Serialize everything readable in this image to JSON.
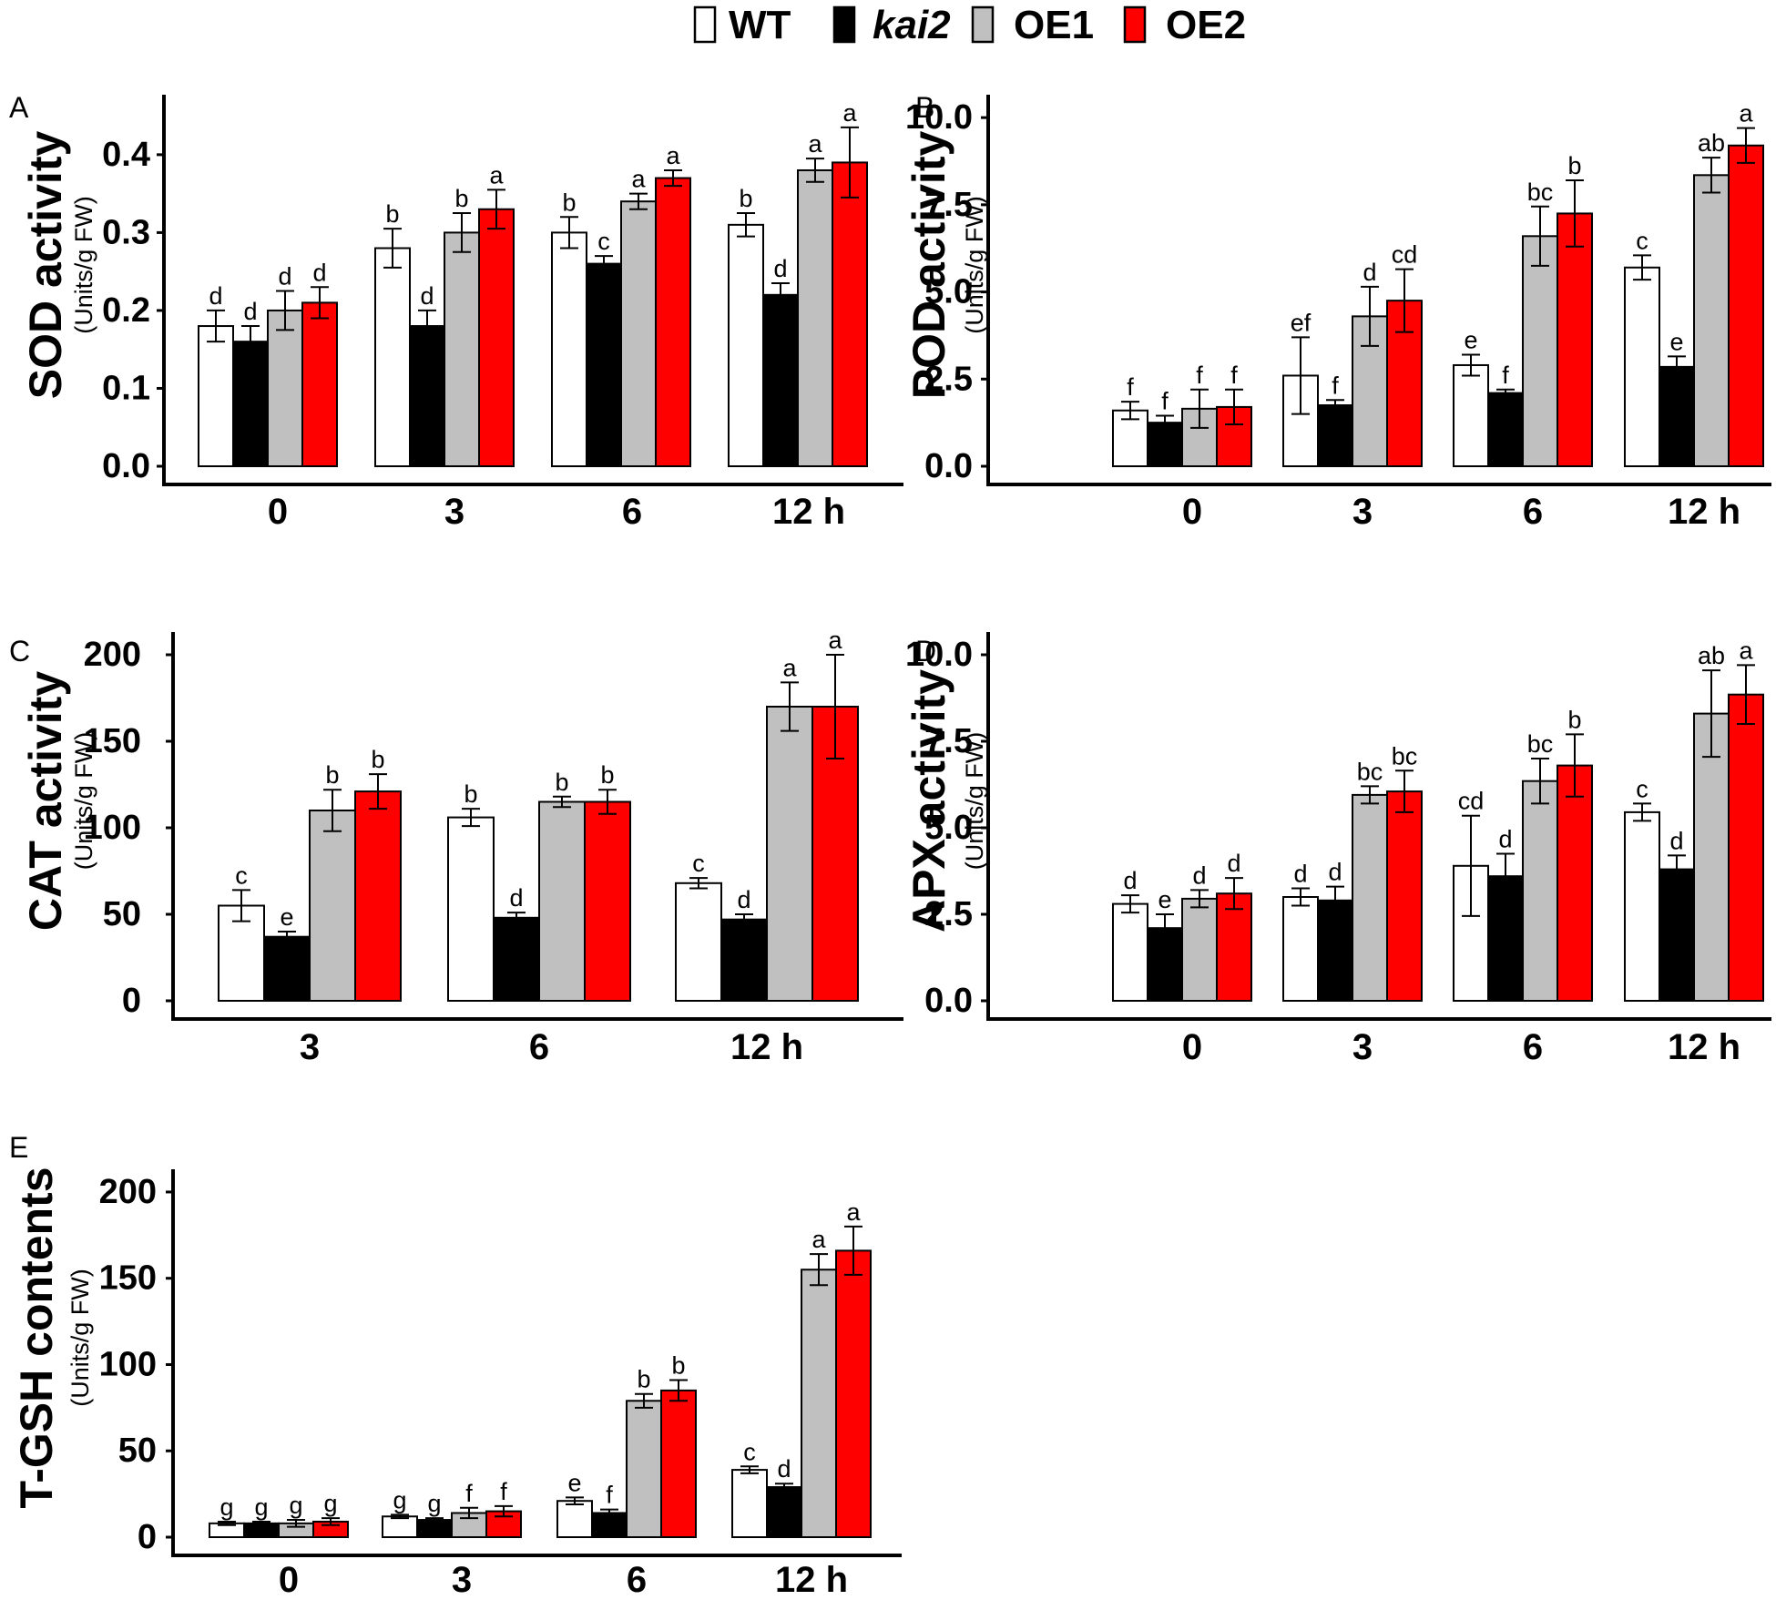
{
  "legend": {
    "entries": [
      {
        "name": "WT",
        "italic": false
      },
      {
        "name": "kai2",
        "italic": true
      },
      {
        "name": "OE1",
        "italic": false
      },
      {
        "name": "OE2",
        "italic": false
      }
    ]
  },
  "colors": {
    "WT": "#ffffff",
    "kai2": "#000000",
    "OE1": "#c0c0c0",
    "OE2": "#ff0000",
    "axis": "#000000"
  },
  "chart_data": [
    {
      "panel": "A",
      "type": "bar",
      "title": "",
      "ylabel": "SOD activity",
      "yunit": "(Units/g FW)",
      "categories": [
        "0",
        "3",
        "6",
        "12 h"
      ],
      "ylim": [
        0,
        0.47
      ],
      "yticks": [
        0.0,
        0.1,
        0.2,
        0.3,
        0.4
      ],
      "ytick_labels": [
        "0.0",
        "0.1",
        "0.2",
        "0.3",
        "0.4"
      ],
      "series": [
        {
          "name": "WT",
          "values": [
            0.18,
            0.28,
            0.3,
            0.31
          ],
          "errors": [
            0.02,
            0.025,
            0.02,
            0.015
          ],
          "letters": [
            "d",
            "b",
            "b",
            "b"
          ]
        },
        {
          "name": "kai2",
          "values": [
            0.16,
            0.18,
            0.26,
            0.22
          ],
          "errors": [
            0.02,
            0.02,
            0.01,
            0.015
          ],
          "letters": [
            "d",
            "d",
            "c",
            "d"
          ]
        },
        {
          "name": "OE1",
          "values": [
            0.2,
            0.3,
            0.34,
            0.38
          ],
          "errors": [
            0.025,
            0.025,
            0.01,
            0.015
          ],
          "letters": [
            "d",
            "b",
            "a",
            "a"
          ]
        },
        {
          "name": "OE2",
          "values": [
            0.21,
            0.33,
            0.37,
            0.39
          ],
          "errors": [
            0.02,
            0.025,
            0.01,
            0.045
          ],
          "letters": [
            "d",
            "a",
            "a",
            "a"
          ]
        }
      ]
    },
    {
      "panel": "B",
      "type": "bar",
      "title": "",
      "ylabel": "POD activity",
      "yunit": "(Units/g FW)",
      "categories": [
        "0",
        "3",
        "6",
        "12 h"
      ],
      "ylim": [
        0,
        10.5
      ],
      "yticks": [
        0.0,
        2.5,
        5.0,
        7.5,
        10.0
      ],
      "ytick_labels": [
        "0.0",
        "2.5",
        "5.0",
        "7.5",
        "10.0"
      ],
      "series": [
        {
          "name": "WT",
          "values": [
            1.6,
            2.6,
            2.9,
            5.7
          ],
          "errors": [
            0.25,
            1.1,
            0.3,
            0.35
          ],
          "letters": [
            "f",
            "ef",
            "e",
            "c"
          ]
        },
        {
          "name": "kai2",
          "values": [
            1.25,
            1.75,
            2.1,
            2.85
          ],
          "errors": [
            0.2,
            0.15,
            0.1,
            0.3
          ],
          "letters": [
            "f",
            "f",
            "f",
            "e"
          ]
        },
        {
          "name": "OE1",
          "values": [
            1.65,
            4.3,
            6.6,
            8.35
          ],
          "errors": [
            0.55,
            0.85,
            0.85,
            0.5
          ],
          "letters": [
            "f",
            "d",
            "bc",
            "ab"
          ]
        },
        {
          "name": "OE2",
          "values": [
            1.7,
            4.75,
            7.25,
            9.2
          ],
          "errors": [
            0.5,
            0.9,
            0.95,
            0.5
          ],
          "letters": [
            "f",
            "cd",
            "b",
            "a"
          ]
        }
      ]
    },
    {
      "panel": "C",
      "type": "bar",
      "title": "",
      "ylabel": "CAT activity",
      "yunit": "(Units/g FW)",
      "categories": [
        "3",
        "6",
        "12 h"
      ],
      "ylim": [
        0,
        210
      ],
      "yticks": [
        0,
        50,
        100,
        150,
        200
      ],
      "ytick_labels": [
        "0",
        "50",
        "100",
        "150",
        "200"
      ],
      "series": [
        {
          "name": "WT",
          "values": [
            55,
            106,
            68
          ],
          "errors": [
            9,
            5,
            3
          ],
          "letters": [
            "c",
            "b",
            "c"
          ]
        },
        {
          "name": "kai2",
          "values": [
            37,
            48,
            47
          ],
          "errors": [
            3,
            3,
            3
          ],
          "letters": [
            "e",
            "d",
            "d"
          ]
        },
        {
          "name": "OE1",
          "values": [
            110,
            115,
            170
          ],
          "errors": [
            12,
            3,
            14
          ],
          "letters": [
            "b",
            "b",
            "a"
          ]
        },
        {
          "name": "OE2",
          "values": [
            121,
            115,
            170
          ],
          "errors": [
            10,
            7,
            30
          ],
          "letters": [
            "b",
            "b",
            "a"
          ]
        }
      ]
    },
    {
      "panel": "D",
      "type": "bar",
      "title": "",
      "ylabel": "APX activity",
      "yunit": "(Units/g FW)",
      "categories": [
        "0",
        "3",
        "6",
        "12 h"
      ],
      "ylim": [
        0,
        10.5
      ],
      "yticks": [
        0.0,
        2.5,
        5.0,
        7.5,
        10.0
      ],
      "ytick_labels": [
        "0.0",
        "2.5",
        "5.0",
        "7.5",
        "10.0"
      ],
      "series": [
        {
          "name": "WT",
          "values": [
            2.8,
            3.0,
            3.9,
            5.45
          ],
          "errors": [
            0.25,
            0.25,
            1.45,
            0.25
          ],
          "letters": [
            "d",
            "d",
            "cd",
            "c"
          ]
        },
        {
          "name": "kai2",
          "values": [
            2.1,
            2.9,
            3.6,
            3.8
          ],
          "errors": [
            0.4,
            0.4,
            0.65,
            0.4
          ],
          "letters": [
            "e",
            "d",
            "d",
            "d"
          ]
        },
        {
          "name": "OE1",
          "values": [
            2.95,
            5.95,
            6.35,
            8.3
          ],
          "errors": [
            0.25,
            0.25,
            0.65,
            1.25
          ],
          "letters": [
            "d",
            "bc",
            "bc",
            "ab"
          ]
        },
        {
          "name": "OE2",
          "values": [
            3.1,
            6.05,
            6.8,
            8.85
          ],
          "errors": [
            0.45,
            0.6,
            0.9,
            0.85
          ],
          "letters": [
            "d",
            "bc",
            "b",
            "a"
          ]
        }
      ]
    },
    {
      "panel": "E",
      "type": "bar",
      "title": "",
      "ylabel": "T-GSH contents",
      "yunit": "(Units/g FW)",
      "categories": [
        "0",
        "3",
        "6",
        "12 h"
      ],
      "ylim": [
        0,
        210
      ],
      "yticks": [
        0,
        50,
        100,
        150,
        200
      ],
      "ytick_labels": [
        "0",
        "50",
        "100",
        "150",
        "200"
      ],
      "series": [
        {
          "name": "WT",
          "values": [
            8,
            12,
            21,
            39
          ],
          "errors": [
            1,
            1,
            2,
            2
          ],
          "letters": [
            "g",
            "g",
            "e",
            "c"
          ]
        },
        {
          "name": "kai2",
          "values": [
            8,
            10,
            14,
            29
          ],
          "errors": [
            1,
            1,
            2,
            2
          ],
          "letters": [
            "g",
            "g",
            "f",
            "d"
          ]
        },
        {
          "name": "OE1",
          "values": [
            8,
            14,
            79,
            155
          ],
          "errors": [
            2,
            3,
            4,
            9
          ],
          "letters": [
            "g",
            "f",
            "b",
            "a"
          ]
        },
        {
          "name": "OE2",
          "values": [
            9,
            15,
            85,
            166
          ],
          "errors": [
            2,
            3,
            6,
            14
          ],
          "letters": [
            "g",
            "f",
            "b",
            "a"
          ]
        }
      ]
    }
  ]
}
